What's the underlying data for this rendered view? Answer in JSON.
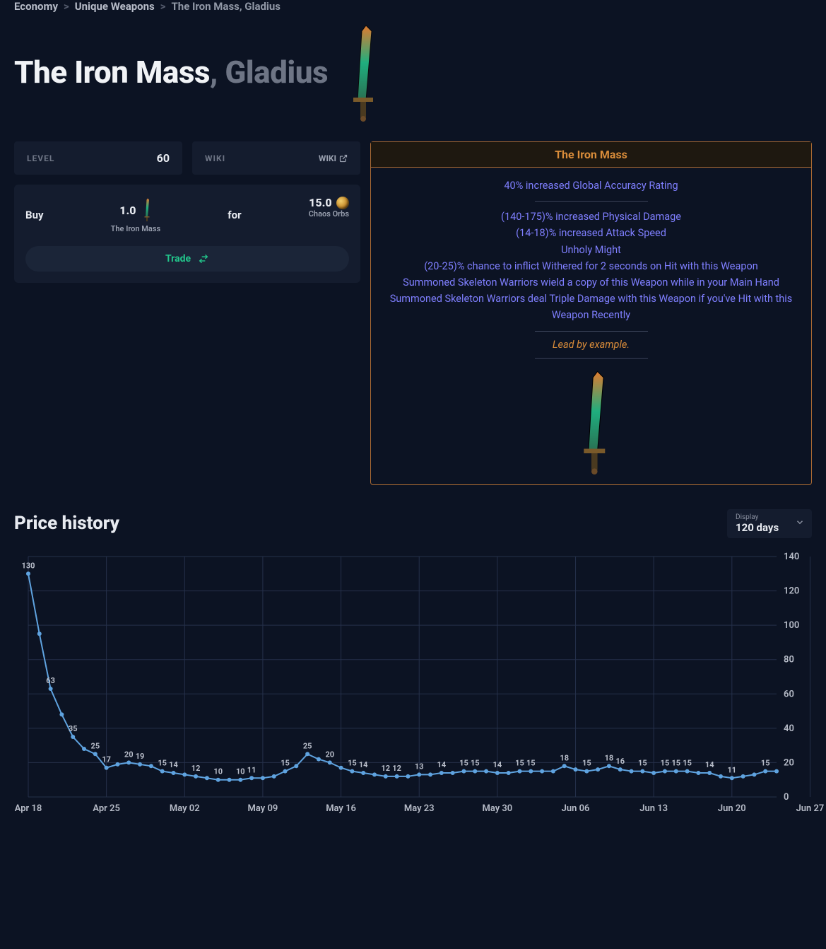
{
  "breadcrumb": {
    "items": [
      "Economy",
      "Unique Weapons",
      "The Iron Mass, Gladius"
    ],
    "sep": ">"
  },
  "title": {
    "main": "The Iron Mass",
    "sep": ", ",
    "sub": "Gladius"
  },
  "cards": {
    "level": {
      "label": "LEVEL",
      "value": "60"
    },
    "wiki": {
      "label": "WIKI",
      "link_text": "WIKI"
    }
  },
  "buy": {
    "label": "Buy",
    "qty": "1.0",
    "item_name": "The Iron Mass",
    "for_label": "for",
    "price": "15.0",
    "currency": "Chaos Orbs",
    "trade_label": "Trade"
  },
  "item_box": {
    "header": "The Iron Mass",
    "mods": [
      "40% increased Global Accuracy Rating",
      "(140-175)% increased Physical Damage",
      "(14-18)% increased Attack Speed",
      "Unholy Might",
      "(20-25)% chance to inflict Withered for 2 seconds on Hit with this Weapon",
      "Summoned Skeleton Warriors wield a copy of this Weapon while in your Main Hand",
      "Summoned Skeleton Warriors deal Triple Damage with this Weapon if you've Hit with this Weapon Recently"
    ],
    "flavor": "Lead by example."
  },
  "price_history": {
    "title": "Price history",
    "display_label": "Display",
    "display_value": "120 days",
    "chart": {
      "type": "line",
      "title": "",
      "background_color": "#0c1323",
      "grid_color": "#25304a",
      "axis_text_color": "#b7bcc8",
      "line_color": "#5fa3e0",
      "marker_color": "#5fa3e0",
      "point_label_color": "#b7bcc8",
      "marker_radius": 3,
      "line_width": 2,
      "ylim": [
        0,
        140
      ],
      "ytick_step": 20,
      "x_labels": [
        "Apr 18",
        "Apr 25",
        "May 02",
        "May 09",
        "May 16",
        "May 23",
        "May 30",
        "Jun 06",
        "Jun 13",
        "Jun 20",
        "Jun 27"
      ],
      "x_label_every": 7,
      "label_fontsize": 11,
      "data": [
        {
          "v": 130,
          "lbl": "130"
        },
        {
          "v": 95
        },
        {
          "v": 63,
          "lbl": "63"
        },
        {
          "v": 48
        },
        {
          "v": 35,
          "lbl": "35"
        },
        {
          "v": 28
        },
        {
          "v": 25,
          "lbl": "25"
        },
        {
          "v": 17,
          "lbl": "17"
        },
        {
          "v": 19
        },
        {
          "v": 20,
          "lbl": "20"
        },
        {
          "v": 19,
          "lbl": "19"
        },
        {
          "v": 18
        },
        {
          "v": 15,
          "lbl": "15"
        },
        {
          "v": 14,
          "lbl": "14"
        },
        {
          "v": 13
        },
        {
          "v": 12,
          "lbl": "12"
        },
        {
          "v": 11
        },
        {
          "v": 10,
          "lbl": "10"
        },
        {
          "v": 10
        },
        {
          "v": 10,
          "lbl": "10"
        },
        {
          "v": 11,
          "lbl": "11"
        },
        {
          "v": 11
        },
        {
          "v": 12
        },
        {
          "v": 15,
          "lbl": "15"
        },
        {
          "v": 18
        },
        {
          "v": 25,
          "lbl": "25"
        },
        {
          "v": 22
        },
        {
          "v": 20,
          "lbl": "20"
        },
        {
          "v": 17
        },
        {
          "v": 15,
          "lbl": "15"
        },
        {
          "v": 14,
          "lbl": "14"
        },
        {
          "v": 13
        },
        {
          "v": 12,
          "lbl": "12"
        },
        {
          "v": 12,
          "lbl": "12"
        },
        {
          "v": 12
        },
        {
          "v": 13,
          "lbl": "13"
        },
        {
          "v": 13
        },
        {
          "v": 14,
          "lbl": "14"
        },
        {
          "v": 14
        },
        {
          "v": 15,
          "lbl": "15"
        },
        {
          "v": 15,
          "lbl": "15"
        },
        {
          "v": 15
        },
        {
          "v": 14,
          "lbl": "14"
        },
        {
          "v": 14
        },
        {
          "v": 15,
          "lbl": "15"
        },
        {
          "v": 15,
          "lbl": "15"
        },
        {
          "v": 15
        },
        {
          "v": 15
        },
        {
          "v": 18,
          "lbl": "18"
        },
        {
          "v": 16
        },
        {
          "v": 15,
          "lbl": "15"
        },
        {
          "v": 16
        },
        {
          "v": 18,
          "lbl": "18"
        },
        {
          "v": 16,
          "lbl": "16"
        },
        {
          "v": 15
        },
        {
          "v": 15,
          "lbl": "15"
        },
        {
          "v": 14
        },
        {
          "v": 15,
          "lbl": "15"
        },
        {
          "v": 15,
          "lbl": "15"
        },
        {
          "v": 15,
          "lbl": "15"
        },
        {
          "v": 14
        },
        {
          "v": 14,
          "lbl": "14"
        },
        {
          "v": 12
        },
        {
          "v": 11,
          "lbl": "11"
        },
        {
          "v": 12
        },
        {
          "v": 13
        },
        {
          "v": 15,
          "lbl": "15"
        },
        {
          "v": 15
        }
      ]
    }
  }
}
